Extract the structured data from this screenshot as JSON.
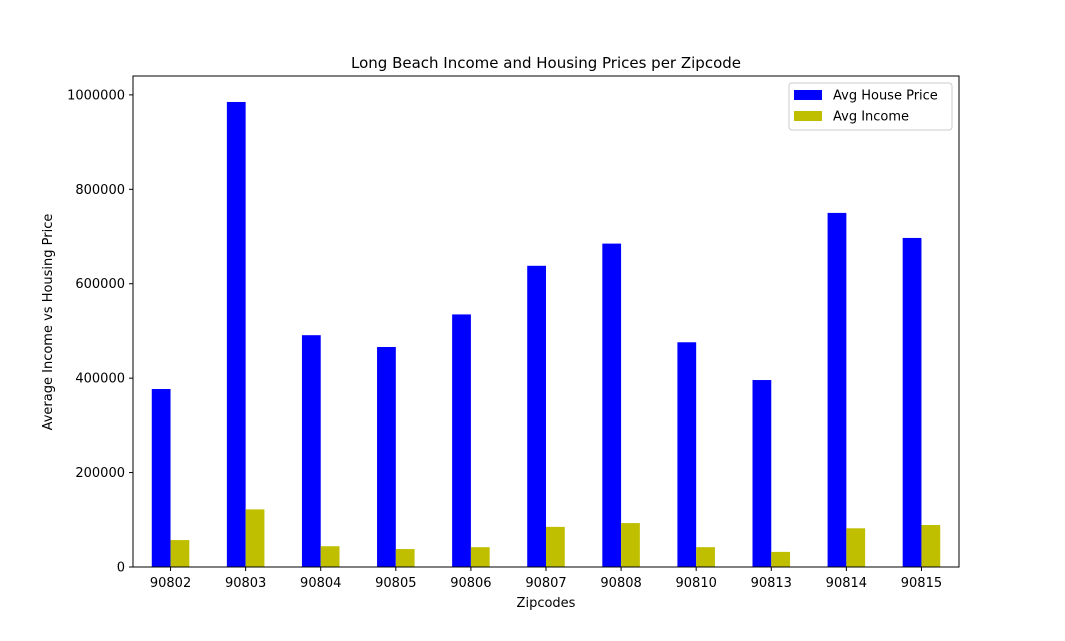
{
  "chart_data": {
    "type": "bar",
    "title": "Long Beach Income and Housing Prices per Zipcode",
    "xlabel": "Zipcodes",
    "ylabel": "Average Income vs Housing Price",
    "categories": [
      "90802",
      "90803",
      "90804",
      "90805",
      "90806",
      "90807",
      "90808",
      "90810",
      "90813",
      "90814",
      "90815"
    ],
    "series": [
      {
        "name": "Avg House Price",
        "color": "#0000ff",
        "values": [
          377000,
          985000,
          491000,
          466000,
          535000,
          638000,
          685000,
          476000,
          396000,
          750000,
          697000
        ]
      },
      {
        "name": "Avg Income",
        "color": "#bfbf00",
        "values": [
          57000,
          122000,
          44000,
          38000,
          42000,
          85000,
          93000,
          42000,
          32000,
          82000,
          89000
        ]
      }
    ],
    "ylim": [
      0,
      1040000
    ],
    "yticks": [
      0,
      200000,
      400000,
      600000,
      800000,
      1000000
    ],
    "ytick_labels": [
      "0",
      "200000",
      "400000",
      "600000",
      "800000",
      "1000000"
    ],
    "grid": false,
    "legend_position": "top-right"
  }
}
